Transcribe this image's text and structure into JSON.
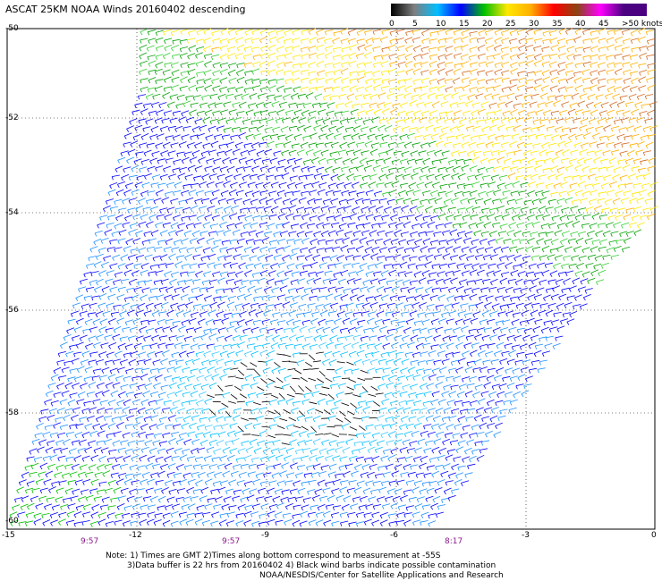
{
  "title": "ASCAT 25KM NOAA Winds 20160402 descending",
  "legend": {
    "labels": [
      "0",
      "5",
      "10",
      "15",
      "20",
      "25",
      "30",
      "35",
      "40",
      "45",
      ">50 knots"
    ],
    "colors": [
      "#000000",
      "#7f7f7f",
      "#00bfff",
      "#0000ff",
      "#00c000",
      "#ffe800",
      "#ffb000",
      "#ff0000",
      "#8b4513",
      "#ff00ff",
      "#4b0082"
    ]
  },
  "map": {
    "lat_labels": [
      "-50",
      "-52",
      "-54",
      "-56",
      "-58",
      "-60"
    ],
    "lon_labels": [
      "-15",
      "-12",
      "-9",
      "-6",
      "-3",
      "0"
    ],
    "time_labels": [
      "9:57",
      "9:57",
      "8:17"
    ]
  },
  "notes": [
    "Note: 1) Times are GMT 2)Times along bottom correspond to measurement at -55S",
    "3)Data buffer is 22 hrs from 20160402 4) Black wind barbs indicate possible contamination",
    "NOAA/NESDIS/Center for Satellite Applications and Research"
  ]
}
